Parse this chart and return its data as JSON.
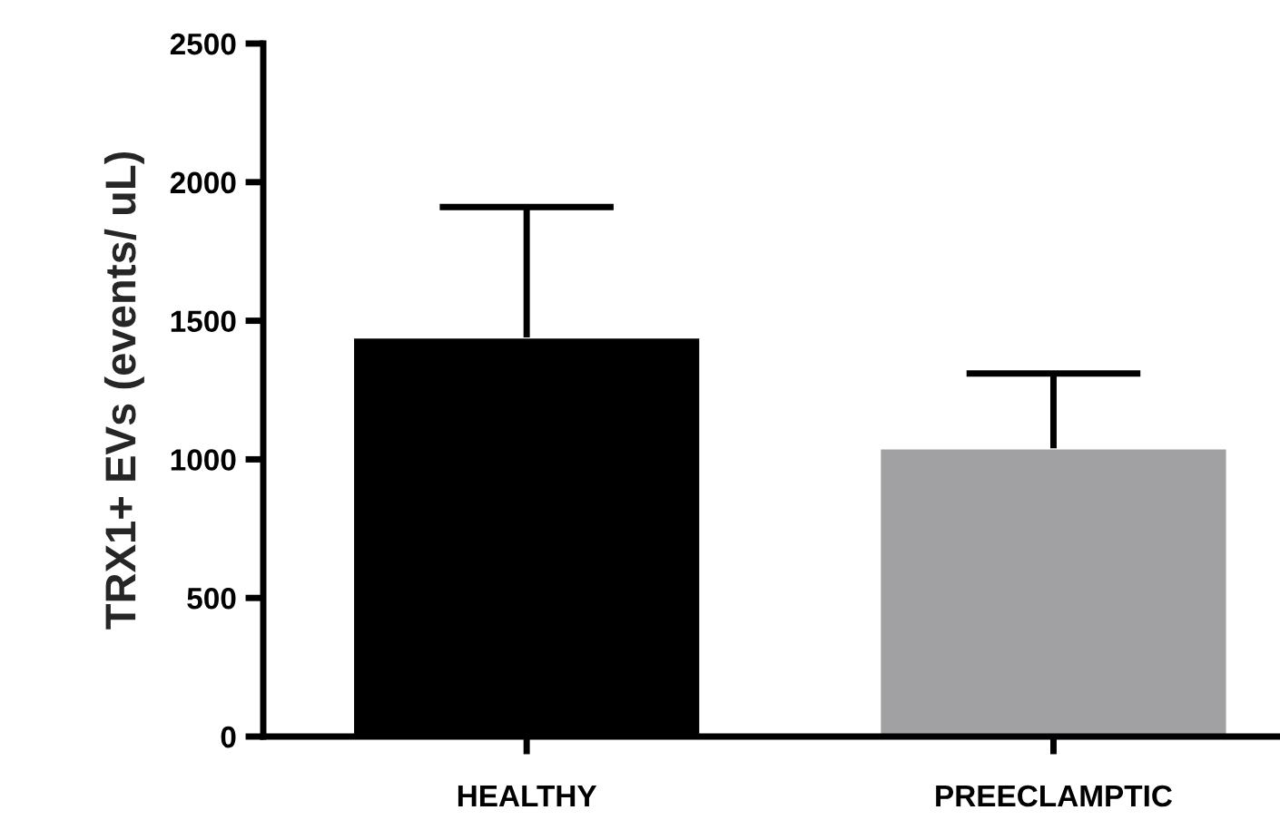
{
  "chart_data": {
    "type": "bar",
    "ylabel": "TRX1+ EVs (events/ uL)",
    "categories": [
      "HEALTHY",
      "PREECLAMPTIC"
    ],
    "values": [
      1440,
      1040
    ],
    "colors": [
      "#000000",
      "#a1a1a4"
    ],
    "errors": [
      [
        1440,
        1910
      ],
      [
        1040,
        1310
      ]
    ],
    "ylim": [
      0,
      2500
    ],
    "yticks": [
      0,
      500,
      1000,
      1500,
      2000,
      2500
    ],
    "grid": false,
    "legend": false
  }
}
